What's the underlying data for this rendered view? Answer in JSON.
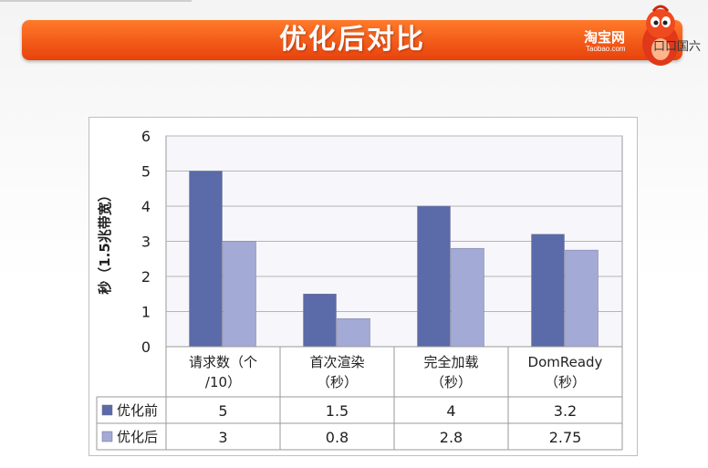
{
  "banner": {
    "title": "优化后对比",
    "logo": "淘宝网",
    "logo_sub": "Taobao.com"
  },
  "overlay_text": "口口国六",
  "chart_data": {
    "type": "bar",
    "ylabel": "秒（1.5兆带宽）",
    "ylim": [
      0,
      6
    ],
    "yticks": [
      "0",
      "1",
      "2",
      "3",
      "4",
      "5",
      "6"
    ],
    "categories": [
      [
        "请求数（个",
        "/10）"
      ],
      [
        "首次渲染",
        "（秒）"
      ],
      [
        "完全加载",
        "（秒）"
      ],
      [
        "DomReady",
        "（秒）"
      ]
    ],
    "series": [
      {
        "name": "优化前",
        "values": [
          5,
          1.5,
          4,
          3.2
        ],
        "labels": [
          "5",
          "1.5",
          "4",
          "3.2"
        ],
        "color": "#5b6aa8"
      },
      {
        "name": "优化后",
        "values": [
          3,
          0.8,
          2.8,
          2.75
        ],
        "labels": [
          "3",
          "0.8",
          "2.8",
          "2.75"
        ],
        "color": "#a3aad5"
      }
    ],
    "grid": true,
    "legend": "data-table"
  }
}
